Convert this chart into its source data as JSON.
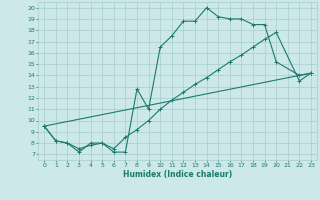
{
  "xlabel": "Humidex (Indice chaleur)",
  "bg_color": "#cde8e8",
  "grid_color": "#a8cccc",
  "line_color": "#1a7a6e",
  "xlim": [
    -0.5,
    23.5
  ],
  "ylim": [
    6.5,
    20.5
  ],
  "xticks": [
    0,
    1,
    2,
    3,
    4,
    5,
    6,
    7,
    8,
    9,
    10,
    11,
    12,
    13,
    14,
    15,
    16,
    17,
    18,
    19,
    20,
    21,
    22,
    23
  ],
  "yticks": [
    7,
    8,
    9,
    10,
    11,
    12,
    13,
    14,
    15,
    16,
    17,
    18,
    19,
    20
  ],
  "line1_x": [
    0,
    1,
    2,
    3,
    4,
    5,
    6,
    7,
    8,
    9,
    10,
    11,
    12,
    13,
    14,
    15,
    16,
    17,
    18,
    19,
    20,
    22,
    23
  ],
  "line1_y": [
    9.5,
    8.2,
    8.0,
    7.2,
    8.0,
    8.0,
    7.2,
    7.2,
    12.8,
    11.0,
    16.5,
    17.5,
    18.8,
    18.8,
    20.0,
    19.2,
    19.0,
    19.0,
    18.5,
    18.5,
    15.2,
    14.0,
    14.2
  ],
  "line2_x": [
    0,
    1,
    2,
    3,
    4,
    5,
    6,
    7,
    8,
    9,
    10,
    11,
    12,
    13,
    14,
    15,
    16,
    17,
    18,
    19,
    20,
    22,
    23
  ],
  "line2_y": [
    9.5,
    8.2,
    8.0,
    7.5,
    7.8,
    8.0,
    7.5,
    8.5,
    9.2,
    10.0,
    11.0,
    11.8,
    12.5,
    13.2,
    13.8,
    14.5,
    15.2,
    15.8,
    16.5,
    17.2,
    17.8,
    13.5,
    14.2
  ],
  "line3_x": [
    0,
    23
  ],
  "line3_y": [
    9.5,
    14.2
  ]
}
